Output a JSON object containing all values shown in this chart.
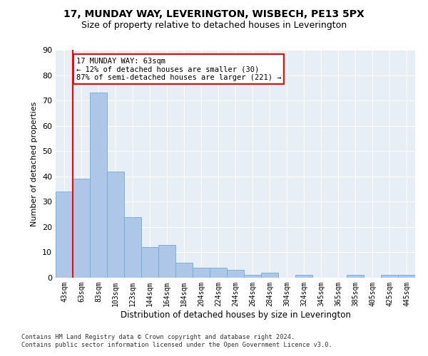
{
  "title1": "17, MUNDAY WAY, LEVERINGTON, WISBECH, PE13 5PX",
  "title2": "Size of property relative to detached houses in Leverington",
  "xlabel": "Distribution of detached houses by size in Leverington",
  "ylabel": "Number of detached properties",
  "categories": [
    "43sqm",
    "63sqm",
    "83sqm",
    "103sqm",
    "123sqm",
    "144sqm",
    "164sqm",
    "184sqm",
    "204sqm",
    "224sqm",
    "244sqm",
    "264sqm",
    "284sqm",
    "304sqm",
    "324sqm",
    "345sqm",
    "365sqm",
    "385sqm",
    "405sqm",
    "425sqm",
    "445sqm"
  ],
  "values": [
    34,
    39,
    73,
    42,
    24,
    12,
    13,
    6,
    4,
    4,
    3,
    1,
    2,
    0,
    1,
    0,
    0,
    1,
    0,
    1,
    1
  ],
  "bar_color": "#aec6e8",
  "bar_edge_color": "#6baed6",
  "property_line_x": 1,
  "annotation_text": "17 MUNDAY WAY: 63sqm\n← 12% of detached houses are smaller (30)\n87% of semi-detached houses are larger (221) →",
  "annotation_box_color": "white",
  "annotation_box_edge_color": "red",
  "vline_color": "red",
  "ylim": [
    0,
    90
  ],
  "yticks": [
    0,
    10,
    20,
    30,
    40,
    50,
    60,
    70,
    80,
    90
  ],
  "bg_color": "#e8eef5",
  "grid_color": "white",
  "footer_line1": "Contains HM Land Registry data © Crown copyright and database right 2024.",
  "footer_line2": "Contains public sector information licensed under the Open Government Licence v3.0."
}
